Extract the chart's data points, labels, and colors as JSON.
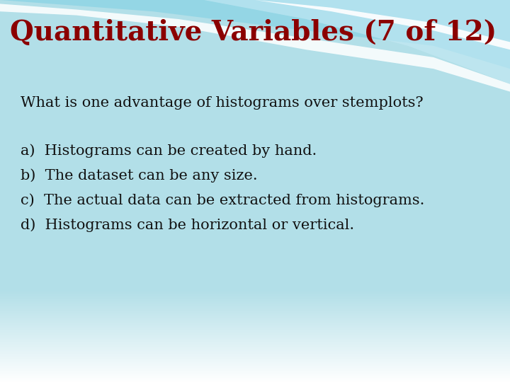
{
  "title": "Quantitative Variables (7 of 12)",
  "title_color": "#8B0000",
  "title_fontsize": 28,
  "question": "What is one advantage of histograms over stemplots?",
  "question_fontsize": 15,
  "answers": [
    "a)  Histograms can be created by hand.",
    "b)  The dataset can be any size.",
    "c)  The actual data can be extracted from histograms.",
    "d)  Histograms can be horizontal or vertical."
  ],
  "answer_fontsize": 15,
  "bg_color": "#ffffff",
  "text_color": "#111111",
  "header_blue": "#5ec8e0",
  "wave_white": "#e8f6fa",
  "wave_light": "#a8daea"
}
